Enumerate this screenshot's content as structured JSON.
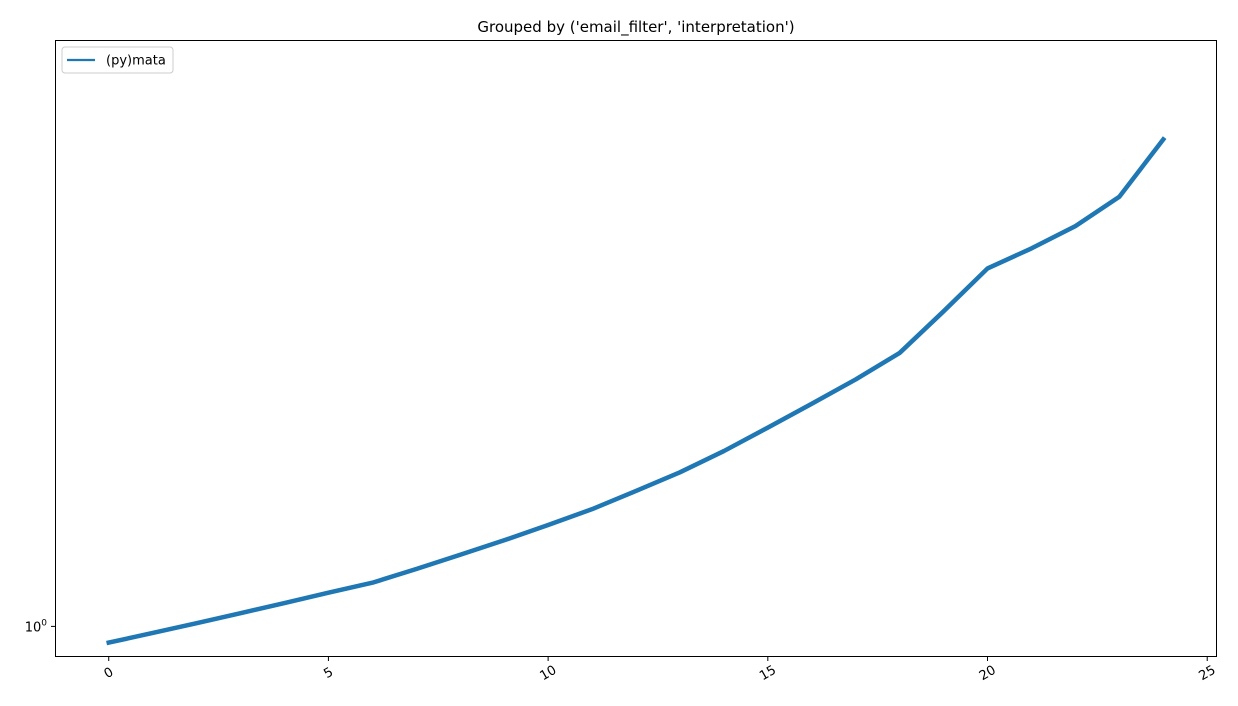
{
  "chart_data": {
    "type": "line",
    "title": "Grouped by ('email_filter', 'interpretation')",
    "xlabel": "",
    "ylabel": "",
    "yscale": "log",
    "grid": false,
    "legend_position": "top-left",
    "xlim": [
      -1.2,
      25.2
    ],
    "ylim": [
      0.93,
      4.2
    ],
    "x_ticks": [
      0,
      5,
      10,
      15,
      20,
      25
    ],
    "x_tick_labels": [
      "0",
      "5",
      "10",
      "15",
      "20",
      "25"
    ],
    "y_ticks": [
      1
    ],
    "y_tick_label_base": "10",
    "y_tick_label_exp": "0",
    "series": [
      {
        "name": "(py)mata",
        "color": "#1f77b4",
        "x": [
          0,
          1,
          2,
          3,
          4,
          5,
          6,
          7,
          8,
          9,
          10,
          11,
          12,
          13,
          14,
          15,
          16,
          17,
          18,
          19,
          20,
          21,
          22,
          23,
          24
        ],
        "y": [
          0.961,
          0.984,
          1.008,
          1.033,
          1.059,
          1.086,
          1.113,
          1.151,
          1.192,
          1.235,
          1.282,
          1.333,
          1.394,
          1.459,
          1.537,
          1.628,
          1.726,
          1.832,
          1.955,
          2.165,
          2.405,
          2.526,
          2.668,
          2.867,
          3.3
        ]
      }
    ]
  }
}
